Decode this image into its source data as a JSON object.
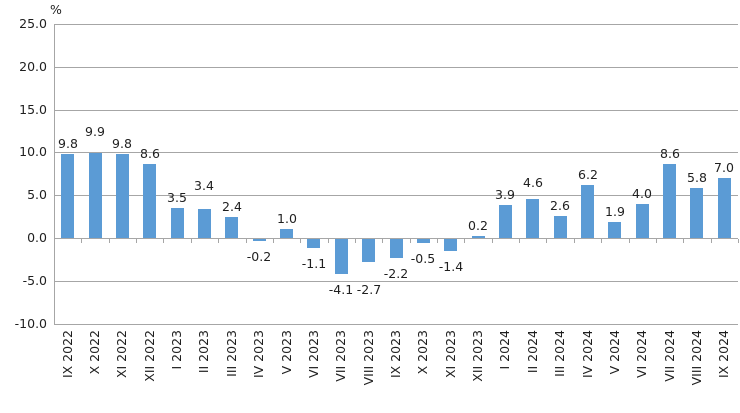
{
  "chart_data": {
    "type": "bar",
    "title": "",
    "unit_label": "%",
    "legend": "none",
    "grid": "on",
    "ylim": [
      -10.0,
      25.0
    ],
    "y_step": 5.0,
    "y_axis": {
      "tick_labels": [
        "25.0",
        "20.0",
        "15.0",
        "10.0",
        "5.0",
        "0.0",
        "-5.0",
        "-10.0"
      ],
      "tick_values": [
        25,
        20,
        15,
        10,
        5,
        0,
        -5,
        -10
      ]
    },
    "categories": [
      "IX 2022",
      "X 2022",
      "XI 2022",
      "XII 2022",
      "I 2023",
      "II 2023",
      "III 2023",
      "IV 2023",
      "V 2023",
      "VI 2023",
      "VII 2023",
      "VIII 2023",
      "IX 2023",
      "X 2023",
      "XI 2023",
      "XII 2023",
      "I 2024",
      "II 2024",
      "III 2024",
      "IV 2024",
      "V 2024",
      "VI 2024",
      "VII 2024",
      "VIII 2024",
      "IX 2024"
    ],
    "values": [
      9.8,
      9.9,
      9.8,
      8.6,
      3.5,
      3.4,
      2.4,
      -0.2,
      1.0,
      -1.1,
      -4.1,
      -2.7,
      -2.2,
      -0.5,
      -1.4,
      0.2,
      3.9,
      4.6,
      2.6,
      6.2,
      1.9,
      4.0,
      8.6,
      5.8,
      7.0
    ],
    "value_labels": [
      "9.8",
      "9.9",
      "9.8",
      "8.6",
      "3.5",
      "3.4",
      "2.4",
      "-0.2",
      "1.0",
      "-1.1",
      "-4.1",
      "-2.7",
      "-2.2",
      "-0.5",
      "-1.4",
      "0.2",
      "3.9",
      "4.6",
      "2.6",
      "6.2",
      "1.9",
      "4.0",
      "8.6",
      "5.8",
      "7.0"
    ],
    "bar_color": "#5b9bd5",
    "grid_color": "#a6a6a6",
    "text_color": "#1f1f1f"
  }
}
